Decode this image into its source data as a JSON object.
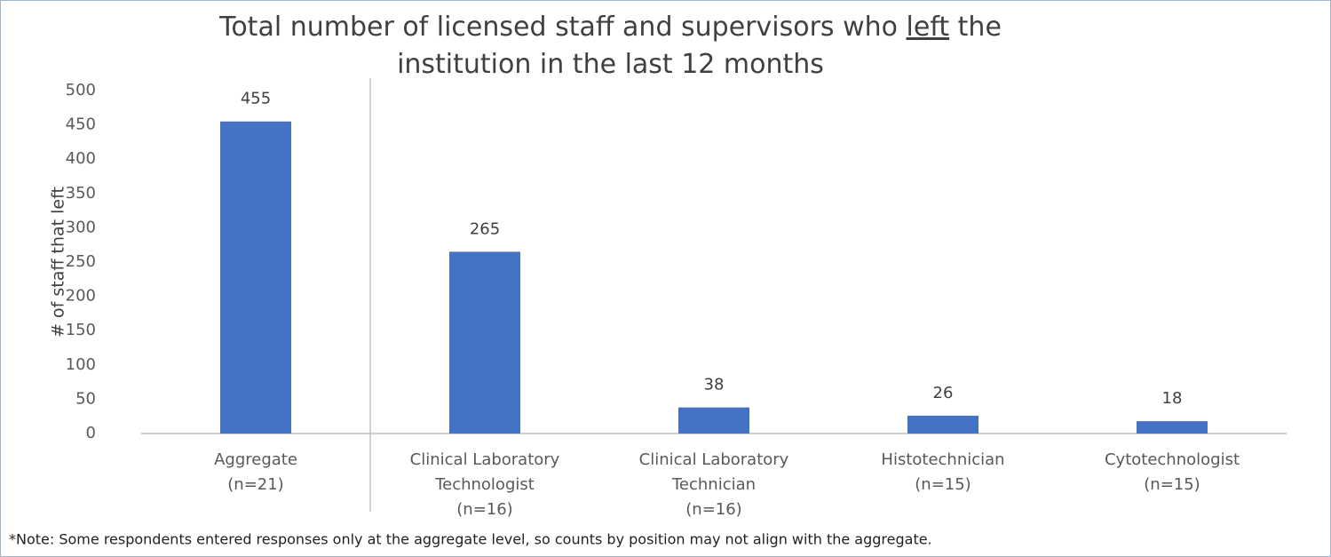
{
  "chart_data": {
    "type": "bar",
    "title": [
      "Total number of licensed staff and supervisors who ",
      "left",
      " the",
      "institution in the last 12 months"
    ],
    "y_label": "# of staff that left",
    "categories": [
      [
        "Aggregate",
        "(n=21)"
      ],
      [
        "Clinical Laboratory",
        "Technologist",
        "(n=16)"
      ],
      [
        "Clinical Laboratory",
        "Technician",
        "(n=16)"
      ],
      [
        "Histotechnician",
        "(n=15)"
      ],
      [
        "Cytotechnologist",
        "(n=15)"
      ]
    ],
    "values": [
      455,
      265,
      38,
      26,
      18
    ],
    "color": "#4472c4",
    "ylim": [
      0,
      500
    ],
    "yticks": [
      0,
      50,
      100,
      150,
      200,
      250,
      300,
      350,
      400,
      450,
      500
    ],
    "grid": false,
    "note": "*Note: Some respondents entered responses only at the aggregate level, so counts by position may not align with the aggregate."
  }
}
